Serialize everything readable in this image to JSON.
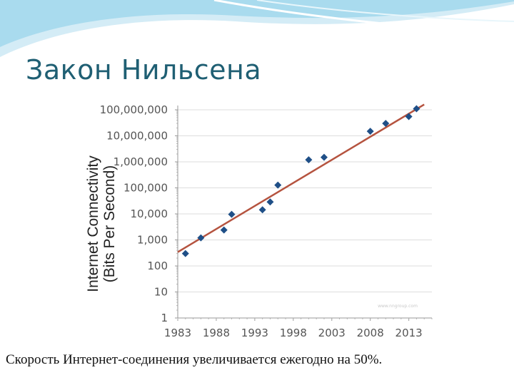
{
  "slide": {
    "title": "Закон Нильсена",
    "caption": "Скорость Интернет-соединения увеличивается ежегодно на 50%."
  },
  "colors": {
    "title": "#1f5f73",
    "marker": "#1f4f87",
    "trendline": "#b5533f",
    "header_wave": "#9fd6ea"
  },
  "chart_data": {
    "type": "scatter",
    "ylabel_line1": "Internet Connectivity",
    "ylabel_line2": "(Bits Per Second)",
    "y_scale": "log10",
    "ylim": [
      1,
      100000000
    ],
    "y_ticks": [
      {
        "value": 100000000,
        "label": "100,000,000"
      },
      {
        "value": 10000000,
        "label": "10,000,000"
      },
      {
        "value": 1000000,
        "label": "1,000,000"
      },
      {
        "value": 100000,
        "label": "100,000"
      },
      {
        "value": 10000,
        "label": "10,000"
      },
      {
        "value": 1000,
        "label": "1,000"
      },
      {
        "value": 100,
        "label": "100"
      },
      {
        "value": 10,
        "label": "10"
      },
      {
        "value": 1,
        "label": "1"
      }
    ],
    "xlim": [
      1983,
      2016
    ],
    "x_ticks": [
      {
        "value": 1983,
        "label": "1983"
      },
      {
        "value": 1988,
        "label": "1988"
      },
      {
        "value": 1993,
        "label": "1993"
      },
      {
        "value": 1998,
        "label": "1998"
      },
      {
        "value": 2003,
        "label": "2003"
      },
      {
        "value": 2008,
        "label": "2008"
      },
      {
        "value": 2013,
        "label": "2013"
      }
    ],
    "grid": true,
    "points": [
      {
        "x": 1984,
        "y": 300
      },
      {
        "x": 1986,
        "y": 1200
      },
      {
        "x": 1989,
        "y": 2400
      },
      {
        "x": 1990,
        "y": 9600
      },
      {
        "x": 1994,
        "y": 14400
      },
      {
        "x": 1995,
        "y": 28800
      },
      {
        "x": 1996,
        "y": 128000
      },
      {
        "x": 2000,
        "y": 1200000
      },
      {
        "x": 2002,
        "y": 1500000
      },
      {
        "x": 2008,
        "y": 15000000
      },
      {
        "x": 2010,
        "y": 30000000
      },
      {
        "x": 2013,
        "y": 55000000
      },
      {
        "x": 2014,
        "y": 110000000
      }
    ],
    "trendline": {
      "x": [
        1983,
        2015
      ],
      "y": [
        340,
        160000000
      ]
    },
    "watermark": "www.nngroup.com"
  }
}
